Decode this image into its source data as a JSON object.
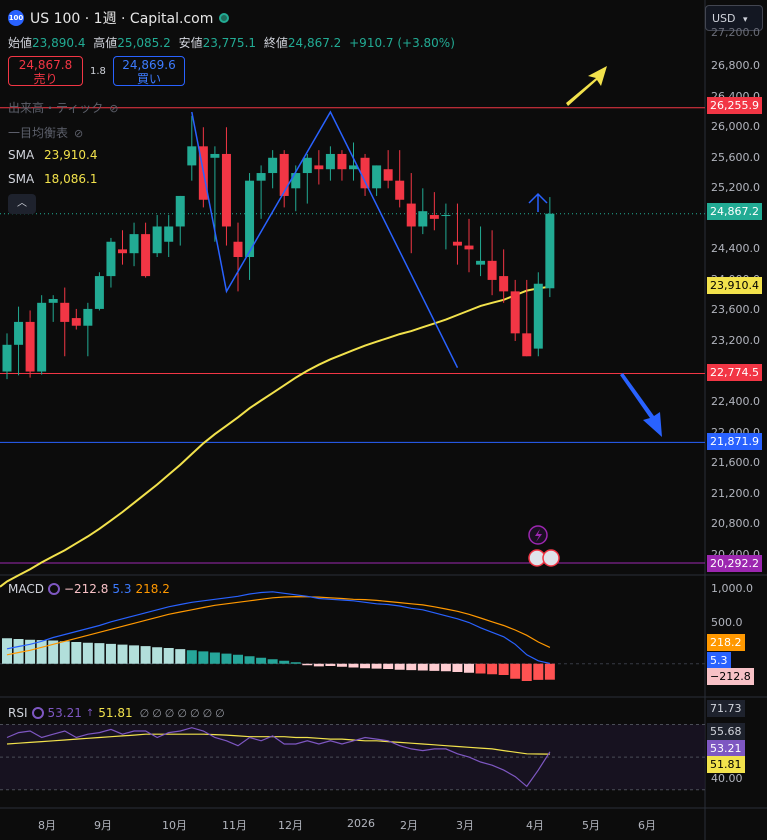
{
  "header": {
    "symbol_icon": "100",
    "title": "US 100 · 1週 · Capital.com",
    "currency": "USD"
  },
  "ohlc": {
    "open_label": "始値",
    "open": "23,890.4",
    "high_label": "高値",
    "high": "25,085.2",
    "low_label": "安値",
    "low": "23,775.1",
    "close_label": "終値",
    "close": "24,867.2",
    "change": "+910.7 (+3.80%)"
  },
  "trade": {
    "sell_price": "24,867.8",
    "sell_label": "売り",
    "spread": "1.8",
    "buy_price": "24,869.6",
    "buy_label": "買い"
  },
  "legend": {
    "volume": "出来高・ティック",
    "ichimoku": "一目均衡表",
    "sma1_label": "SMA",
    "sma1_value": "23,910.4",
    "sma2_label": "SMA",
    "sma2_value": "18,086.1",
    "collapse_icon": "chevron-up"
  },
  "price_axis": {
    "ticks": [
      "26,800.0",
      "26,400.0",
      "26,000.0",
      "25,600.0",
      "25,200.0",
      "24,400.0",
      "24,000.0",
      "23,600.0",
      "23,200.0",
      "22,400.0",
      "22,000.0",
      "21,600.0",
      "21,200.0",
      "20,800.0",
      "20,400.0"
    ],
    "top_partial": "27,200.0"
  },
  "tags": {
    "resistance": "26,255.9",
    "current": "24,867.2",
    "sma": "23,910.4",
    "support": "22,774.5",
    "lower_support": "21,871.9",
    "purple_line": "20,292.2"
  },
  "macd": {
    "label": "MACD",
    "hist": "−212.8",
    "macd": "5.3",
    "signal": "218.2",
    "axis_1000": "1,000.0",
    "axis_500": "500.0",
    "tag_signal": "218.2",
    "tag_macd": "5.3",
    "tag_hist": "−212.8"
  },
  "rsi": {
    "label": "RSI",
    "value": "53.21",
    "arrow": "↑",
    "ma": "51.81",
    "na_marks": [
      "∅",
      "∅",
      "∅",
      "∅",
      "∅",
      "∅",
      "∅"
    ],
    "tag_upper": "71.73",
    "tag_mid": "55.68",
    "tag_value": "53.21",
    "tag_ma": "51.81",
    "axis_40": "40.00"
  },
  "time_axis": [
    "8月",
    "9月",
    "10月",
    "11月",
    "12月",
    "2026",
    "2月",
    "3月",
    "4月",
    "5月",
    "6月"
  ],
  "colors": {
    "up": "#22ab94",
    "down": "#f23645",
    "sma": "#f2e24c",
    "blue": "#2962ff",
    "purple": "#9c27b0"
  },
  "chart_data": {
    "type": "candlestick",
    "timeframe": "weekly",
    "candles": [
      {
        "o": 22800,
        "h": 23300,
        "l": 22700,
        "c": 23150
      },
      {
        "o": 23150,
        "h": 23650,
        "l": 22750,
        "c": 23450
      },
      {
        "o": 23450,
        "h": 23600,
        "l": 22720,
        "c": 22800
      },
      {
        "o": 22800,
        "h": 23800,
        "l": 22760,
        "c": 23700
      },
      {
        "o": 23700,
        "h": 23800,
        "l": 23450,
        "c": 23750
      },
      {
        "o": 23700,
        "h": 23900,
        "l": 23000,
        "c": 23450
      },
      {
        "o": 23500,
        "h": 23620,
        "l": 23350,
        "c": 23400
      },
      {
        "o": 23400,
        "h": 23700,
        "l": 23000,
        "c": 23620
      },
      {
        "o": 23620,
        "h": 24100,
        "l": 23600,
        "c": 24050
      },
      {
        "o": 24050,
        "h": 24550,
        "l": 23900,
        "c": 24500
      },
      {
        "o": 24400,
        "h": 24650,
        "l": 24200,
        "c": 24350
      },
      {
        "o": 24350,
        "h": 24750,
        "l": 24180,
        "c": 24600
      },
      {
        "o": 24600,
        "h": 24750,
        "l": 24030,
        "c": 24050
      },
      {
        "o": 24350,
        "h": 24850,
        "l": 24300,
        "c": 24700
      },
      {
        "o": 24500,
        "h": 24850,
        "l": 24300,
        "c": 24700
      },
      {
        "o": 24700,
        "h": 25100,
        "l": 24450,
        "c": 25100
      },
      {
        "o": 25500,
        "h": 26150,
        "l": 25300,
        "c": 25750
      },
      {
        "o": 25750,
        "h": 26000,
        "l": 24950,
        "c": 25050
      },
      {
        "o": 25600,
        "h": 25750,
        "l": 24500,
        "c": 25650
      },
      {
        "o": 25650,
        "h": 26000,
        "l": 24450,
        "c": 24700
      },
      {
        "o": 24500,
        "h": 24750,
        "l": 23850,
        "c": 24300
      },
      {
        "o": 24300,
        "h": 25400,
        "l": 24000,
        "c": 25300
      },
      {
        "o": 25300,
        "h": 25500,
        "l": 24800,
        "c": 25400
      },
      {
        "o": 25400,
        "h": 25700,
        "l": 25200,
        "c": 25600
      },
      {
        "o": 25650,
        "h": 25700,
        "l": 24950,
        "c": 25100
      },
      {
        "o": 25200,
        "h": 25500,
        "l": 24900,
        "c": 25400
      },
      {
        "o": 25400,
        "h": 25650,
        "l": 25000,
        "c": 25600
      },
      {
        "o": 25500,
        "h": 25700,
        "l": 25250,
        "c": 25450
      },
      {
        "o": 25450,
        "h": 25750,
        "l": 25300,
        "c": 25650
      },
      {
        "o": 25650,
        "h": 25700,
        "l": 25300,
        "c": 25450
      },
      {
        "o": 25450,
        "h": 25800,
        "l": 25300,
        "c": 25500
      },
      {
        "o": 25600,
        "h": 25650,
        "l": 25100,
        "c": 25200
      },
      {
        "o": 25200,
        "h": 25500,
        "l": 25100,
        "c": 25500
      },
      {
        "o": 25450,
        "h": 25700,
        "l": 25200,
        "c": 25300
      },
      {
        "o": 25300,
        "h": 25700,
        "l": 24950,
        "c": 25050
      },
      {
        "o": 25000,
        "h": 25400,
        "l": 24350,
        "c": 24700
      },
      {
        "o": 24700,
        "h": 25200,
        "l": 24600,
        "c": 24900
      },
      {
        "o": 24850,
        "h": 25150,
        "l": 24650,
        "c": 24800
      },
      {
        "o": 24850,
        "h": 25000,
        "l": 24400,
        "c": 24850
      },
      {
        "o": 24500,
        "h": 25000,
        "l": 24200,
        "c": 24450
      },
      {
        "o": 24450,
        "h": 24800,
        "l": 24100,
        "c": 24400
      },
      {
        "o": 24200,
        "h": 24700,
        "l": 24050,
        "c": 24250
      },
      {
        "o": 24250,
        "h": 24650,
        "l": 23800,
        "c": 24000
      },
      {
        "o": 24050,
        "h": 24400,
        "l": 23700,
        "c": 23850
      },
      {
        "o": 23850,
        "h": 24000,
        "l": 23200,
        "c": 23300
      },
      {
        "o": 23300,
        "h": 24000,
        "l": 23000,
        "c": 23000
      },
      {
        "o": 23100,
        "h": 24100,
        "l": 23000,
        "c": 23950
      },
      {
        "o": 23890.4,
        "h": 25085.2,
        "l": 23775.1,
        "c": 24867.2
      }
    ],
    "sma_long": [
      20050,
      20130,
      20210,
      20300,
      20380,
      20460,
      20550,
      20640,
      20740,
      20850,
      20960,
      21080,
      21200,
      21320,
      21450,
      21580,
      21720,
      21860,
      21980,
      22090,
      22200,
      22320,
      22420,
      22520,
      22620,
      22720,
      22810,
      22890,
      22960,
      23020,
      23080,
      23140,
      23190,
      23240,
      23290,
      23330,
      23380,
      23430,
      23480,
      23540,
      23600,
      23660,
      23700,
      23740,
      23800,
      23860,
      23890,
      23910.4
    ],
    "horizontal_levels": [
      26255.9,
      22774.5,
      21871.9,
      20292.2
    ],
    "zigzag": [
      [
        16,
        26200
      ],
      [
        19,
        23850
      ],
      [
        28,
        26200
      ],
      [
        39,
        22850
      ]
    ],
    "macd_hist": [
      340,
      330,
      320,
      315,
      310,
      300,
      290,
      280,
      275,
      265,
      255,
      245,
      235,
      220,
      210,
      195,
      180,
      165,
      150,
      135,
      120,
      100,
      80,
      60,
      40,
      20,
      -20,
      -35,
      -30,
      -40,
      -50,
      -60,
      -65,
      -70,
      -80,
      -85,
      -90,
      -95,
      -100,
      -110,
      -120,
      -130,
      -140,
      -150,
      -200,
      -230,
      -215,
      -212.8
    ],
    "macd_line": [
      200,
      230,
      260,
      300,
      350,
      390,
      430,
      470,
      510,
      560,
      600,
      640,
      680,
      720,
      760,
      790,
      820,
      840,
      860,
      880,
      900,
      930,
      950,
      960,
      940,
      920,
      900,
      870,
      860,
      850,
      840,
      820,
      800,
      790,
      770,
      740,
      720,
      680,
      640,
      600,
      550,
      480,
      420,
      360,
      260,
      120,
      40,
      5.3
    ],
    "signal_line": [
      120,
      150,
      180,
      220,
      260,
      300,
      340,
      380,
      420,
      460,
      500,
      540,
      580,
      620,
      660,
      690,
      720,
      750,
      780,
      800,
      820,
      840,
      860,
      880,
      890,
      895,
      893,
      888,
      880,
      870,
      860,
      855,
      845,
      830,
      815,
      800,
      785,
      760,
      730,
      700,
      660,
      610,
      560,
      510,
      450,
      380,
      290,
      218.2
    ],
    "rsi": [
      62,
      65,
      66,
      62,
      64,
      66,
      62,
      64,
      65,
      67,
      64,
      66,
      66,
      62,
      65,
      66,
      68,
      66,
      62,
      60,
      57,
      62,
      60,
      63,
      58,
      58,
      60,
      58,
      60,
      58,
      60,
      62,
      61,
      60,
      57,
      55,
      54,
      55,
      55,
      52,
      50,
      47,
      45,
      42,
      38,
      32,
      42,
      53.21
    ],
    "rsi_ma": [
      58,
      58.5,
      59,
      59.5,
      60,
      60.5,
      61,
      61.5,
      62,
      62.5,
      63,
      63.5,
      64,
      64,
      64,
      64,
      64,
      64,
      63.8,
      63.5,
      63,
      62.5,
      62.5,
      62.5,
      62.5,
      62,
      62,
      61.5,
      61,
      61,
      60.5,
      60,
      60,
      59.5,
      59,
      58.5,
      58,
      57.5,
      57,
      56.5,
      56,
      55.5,
      55,
      54,
      53,
      52,
      51.9,
      51.81
    ]
  }
}
